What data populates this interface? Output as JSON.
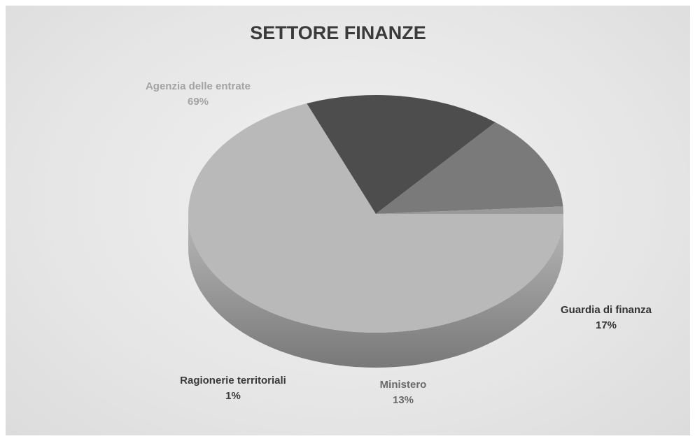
{
  "chart_data": {
    "type": "pie",
    "title": "SETTORE FINANZE",
    "slices": [
      {
        "label": "Agenzia delle entrate",
        "value": 69,
        "display": "69%",
        "color": "#b9b9b9",
        "label_color": "#a3a3a3"
      },
      {
        "label": "Guardia di finanza",
        "value": 17,
        "display": "17%",
        "color": "#4d4d4d",
        "label_color": "#333333"
      },
      {
        "label": "Ministero",
        "value": 13,
        "display": "13%",
        "color": "#7a7a7a",
        "label_color": "#6a6a6a"
      },
      {
        "label": "Ragionerie territoriali",
        "value": 1,
        "display": "1%",
        "color": "#9a9a9a",
        "label_color": "#3a3a3a"
      }
    ],
    "legend": "none",
    "style": "3d-pie"
  }
}
